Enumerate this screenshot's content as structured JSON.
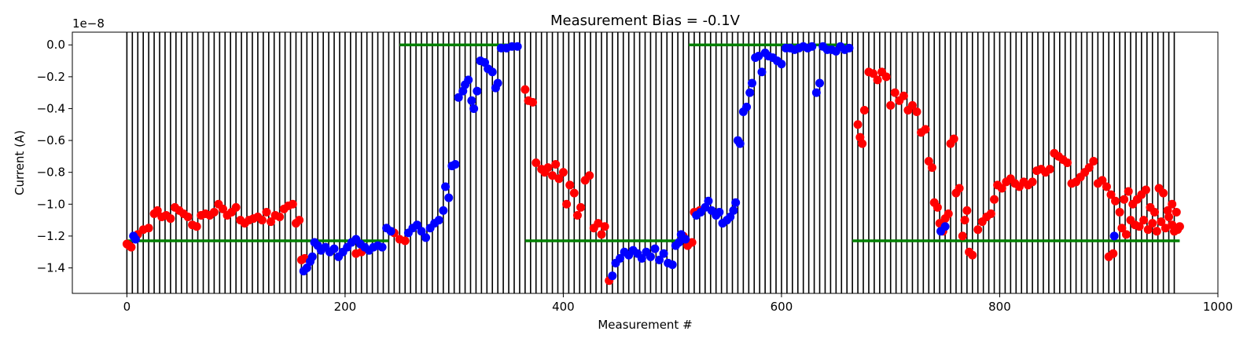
{
  "chart_data": {
    "type": "scatter",
    "title": "Measurement Bias = -0.1V",
    "xlabel": "Measurement #",
    "ylabel": "Current (A)",
    "y_offset_text": "1e−8",
    "y_multiplier": 1e-08,
    "xlim": [
      -50,
      1000
    ],
    "ylim": [
      -1.56,
      0.08
    ],
    "x_ticks": [
      0,
      200,
      400,
      600,
      800,
      1000
    ],
    "x_tick_labels": [
      "0",
      "200",
      "400",
      "600",
      "800",
      "1000"
    ],
    "y_ticks": [
      0.0,
      -0.2,
      -0.4,
      -0.6,
      -0.8,
      -1.0,
      -1.2,
      -1.4
    ],
    "y_tick_labels": [
      "0.0",
      "−0.2",
      "−0.4",
      "−0.6",
      "−0.8",
      "−1.0",
      "−1.2",
      "−1.4"
    ],
    "grid": false,
    "colors": {
      "red_series": "#ff0000",
      "blue_series": "#0000ff",
      "green_lines": "#008000",
      "vertical_lines": "#000000"
    },
    "vertical_lines": {
      "start": 0,
      "end": 960,
      "step": 5
    },
    "green_segments": [
      {
        "x": [
          0,
          240
        ],
        "y": -1.23
      },
      {
        "x": [
          250,
          360
        ],
        "y": 0.0
      },
      {
        "x": [
          365,
          510
        ],
        "y": -1.23
      },
      {
        "x": [
          515,
          660
        ],
        "y": 0.0
      },
      {
        "x": [
          665,
          965
        ],
        "y": -1.23
      }
    ],
    "series": [
      {
        "color": "red",
        "points": [
          [
            0,
            -1.25
          ],
          [
            2,
            -1.26
          ],
          [
            4,
            -1.27
          ],
          [
            10,
            -1.19
          ],
          [
            15,
            -1.16
          ],
          [
            20,
            -1.15
          ],
          [
            25,
            -1.06
          ],
          [
            28,
            -1.04
          ],
          [
            32,
            -1.08
          ],
          [
            36,
            -1.07
          ],
          [
            40,
            -1.09
          ],
          [
            44,
            -1.02
          ],
          [
            48,
            -1.04
          ],
          [
            52,
            -1.06
          ],
          [
            56,
            -1.08
          ],
          [
            60,
            -1.13
          ],
          [
            64,
            -1.14
          ],
          [
            68,
            -1.07
          ],
          [
            72,
            -1.06
          ],
          [
            76,
            -1.07
          ],
          [
            80,
            -1.05
          ],
          [
            84,
            -1.0
          ],
          [
            88,
            -1.03
          ],
          [
            92,
            -1.07
          ],
          [
            96,
            -1.05
          ],
          [
            100,
            -1.02
          ],
          [
            104,
            -1.1
          ],
          [
            108,
            -1.12
          ],
          [
            112,
            -1.1
          ],
          [
            116,
            -1.09
          ],
          [
            120,
            -1.08
          ],
          [
            124,
            -1.1
          ],
          [
            128,
            -1.05
          ],
          [
            132,
            -1.11
          ],
          [
            136,
            -1.07
          ],
          [
            140,
            -1.08
          ],
          [
            144,
            -1.03
          ],
          [
            148,
            -1.01
          ],
          [
            152,
            -1.0
          ],
          [
            155,
            -1.12
          ],
          [
            158,
            -1.1
          ],
          [
            160,
            -1.35
          ],
          [
            163,
            -1.34
          ],
          [
            210,
            -1.31
          ],
          [
            215,
            -1.3
          ],
          [
            245,
            -1.18
          ],
          [
            250,
            -1.22
          ],
          [
            255,
            -1.23
          ],
          [
            365,
            -0.28
          ],
          [
            368,
            -0.35
          ],
          [
            372,
            -0.36
          ],
          [
            375,
            -0.74
          ],
          [
            380,
            -0.78
          ],
          [
            383,
            -0.8
          ],
          [
            386,
            -0.77
          ],
          [
            390,
            -0.82
          ],
          [
            393,
            -0.75
          ],
          [
            396,
            -0.84
          ],
          [
            400,
            -0.8
          ],
          [
            403,
            -1.0
          ],
          [
            406,
            -0.88
          ],
          [
            410,
            -0.93
          ],
          [
            413,
            -1.07
          ],
          [
            416,
            -1.02
          ],
          [
            420,
            -0.85
          ],
          [
            424,
            -0.82
          ],
          [
            428,
            -1.15
          ],
          [
            432,
            -1.12
          ],
          [
            435,
            -1.19
          ],
          [
            438,
            -1.14
          ],
          [
            442,
            -1.48
          ],
          [
            510,
            -1.2
          ],
          [
            514,
            -1.26
          ],
          [
            518,
            -1.24
          ],
          [
            520,
            -1.05
          ],
          [
            525,
            -1.04
          ],
          [
            670,
            -0.5
          ],
          [
            672,
            -0.58
          ],
          [
            674,
            -0.62
          ],
          [
            676,
            -0.41
          ],
          [
            680,
            -0.17
          ],
          [
            684,
            -0.18
          ],
          [
            688,
            -0.22
          ],
          [
            692,
            -0.17
          ],
          [
            696,
            -0.2
          ],
          [
            700,
            -0.38
          ],
          [
            704,
            -0.3
          ],
          [
            708,
            -0.35
          ],
          [
            712,
            -0.32
          ],
          [
            716,
            -0.41
          ],
          [
            720,
            -0.38
          ],
          [
            724,
            -0.42
          ],
          [
            728,
            -0.55
          ],
          [
            732,
            -0.53
          ],
          [
            735,
            -0.73
          ],
          [
            738,
            -0.77
          ],
          [
            740,
            -0.99
          ],
          [
            743,
            -1.02
          ],
          [
            745,
            -1.12
          ],
          [
            748,
            -1.17
          ],
          [
            750,
            -1.09
          ],
          [
            753,
            -1.06
          ],
          [
            755,
            -0.62
          ],
          [
            758,
            -0.59
          ],
          [
            760,
            -0.93
          ],
          [
            763,
            -0.9
          ],
          [
            766,
            -1.2
          ],
          [
            768,
            -1.1
          ],
          [
            770,
            -1.04
          ],
          [
            772,
            -1.3
          ],
          [
            775,
            -1.32
          ],
          [
            780,
            -1.16
          ],
          [
            784,
            -1.11
          ],
          [
            788,
            -1.08
          ],
          [
            792,
            -1.06
          ],
          [
            795,
            -0.97
          ],
          [
            798,
            -0.88
          ],
          [
            802,
            -0.9
          ],
          [
            806,
            -0.86
          ],
          [
            810,
            -0.84
          ],
          [
            814,
            -0.87
          ],
          [
            818,
            -0.89
          ],
          [
            822,
            -0.86
          ],
          [
            826,
            -0.88
          ],
          [
            830,
            -0.86
          ],
          [
            834,
            -0.79
          ],
          [
            838,
            -0.78
          ],
          [
            842,
            -0.8
          ],
          [
            846,
            -0.78
          ],
          [
            850,
            -0.68
          ],
          [
            854,
            -0.7
          ],
          [
            858,
            -0.72
          ],
          [
            862,
            -0.74
          ],
          [
            866,
            -0.87
          ],
          [
            870,
            -0.86
          ],
          [
            874,
            -0.83
          ],
          [
            878,
            -0.8
          ],
          [
            882,
            -0.77
          ],
          [
            886,
            -0.73
          ],
          [
            890,
            -0.87
          ],
          [
            894,
            -0.85
          ],
          [
            898,
            -0.89
          ],
          [
            902,
            -0.94
          ],
          [
            906,
            -0.98
          ],
          [
            910,
            -1.05
          ],
          [
            914,
            -0.97
          ],
          [
            918,
            -0.92
          ],
          [
            922,
            -1.0
          ],
          [
            926,
            -0.97
          ],
          [
            930,
            -0.94
          ],
          [
            934,
            -0.91
          ],
          [
            938,
            -1.02
          ],
          [
            942,
            -1.05
          ],
          [
            946,
            -0.9
          ],
          [
            950,
            -0.93
          ],
          [
            954,
            -1.04
          ],
          [
            958,
            -1.0
          ],
          [
            962,
            -1.05
          ],
          [
            900,
            -1.33
          ],
          [
            904,
            -1.31
          ],
          [
            912,
            -1.15
          ],
          [
            916,
            -1.19
          ],
          [
            920,
            -1.1
          ],
          [
            924,
            -1.13
          ],
          [
            928,
            -1.14
          ],
          [
            932,
            -1.1
          ],
          [
            936,
            -1.16
          ],
          [
            940,
            -1.12
          ],
          [
            944,
            -1.17
          ],
          [
            948,
            -1.11
          ],
          [
            952,
            -1.15
          ],
          [
            955,
            -1.08
          ],
          [
            958,
            -1.13
          ],
          [
            960,
            -1.17
          ],
          [
            963,
            -1.16
          ],
          [
            965,
            -1.14
          ]
        ]
      },
      {
        "color": "blue",
        "points": [
          [
            6,
            -1.2
          ],
          [
            8,
            -1.22
          ],
          [
            162,
            -1.42
          ],
          [
            165,
            -1.4
          ],
          [
            168,
            -1.36
          ],
          [
            170,
            -1.33
          ],
          [
            172,
            -1.24
          ],
          [
            175,
            -1.26
          ],
          [
            178,
            -1.29
          ],
          [
            182,
            -1.27
          ],
          [
            186,
            -1.3
          ],
          [
            190,
            -1.28
          ],
          [
            194,
            -1.33
          ],
          [
            198,
            -1.3
          ],
          [
            202,
            -1.27
          ],
          [
            206,
            -1.24
          ],
          [
            210,
            -1.22
          ],
          [
            214,
            -1.25
          ],
          [
            218,
            -1.27
          ],
          [
            222,
            -1.29
          ],
          [
            226,
            -1.27
          ],
          [
            230,
            -1.26
          ],
          [
            234,
            -1.27
          ],
          [
            238,
            -1.15
          ],
          [
            242,
            -1.17
          ],
          [
            258,
            -1.18
          ],
          [
            262,
            -1.15
          ],
          [
            266,
            -1.13
          ],
          [
            270,
            -1.17
          ],
          [
            274,
            -1.21
          ],
          [
            278,
            -1.15
          ],
          [
            282,
            -1.12
          ],
          [
            286,
            -1.1
          ],
          [
            290,
            -1.04
          ],
          [
            292,
            -0.89
          ],
          [
            295,
            -0.96
          ],
          [
            298,
            -0.76
          ],
          [
            301,
            -0.75
          ],
          [
            304,
            -0.33
          ],
          [
            308,
            -0.29
          ],
          [
            310,
            -0.25
          ],
          [
            313,
            -0.22
          ],
          [
            316,
            -0.35
          ],
          [
            318,
            -0.4
          ],
          [
            321,
            -0.29
          ],
          [
            324,
            -0.1
          ],
          [
            328,
            -0.11
          ],
          [
            331,
            -0.15
          ],
          [
            335,
            -0.17
          ],
          [
            338,
            -0.27
          ],
          [
            340,
            -0.24
          ],
          [
            343,
            -0.02
          ],
          [
            348,
            -0.02
          ],
          [
            353,
            -0.01
          ],
          [
            358,
            -0.01
          ],
          [
            445,
            -1.45
          ],
          [
            448,
            -1.37
          ],
          [
            452,
            -1.34
          ],
          [
            456,
            -1.3
          ],
          [
            460,
            -1.32
          ],
          [
            464,
            -1.29
          ],
          [
            468,
            -1.31
          ],
          [
            472,
            -1.34
          ],
          [
            476,
            -1.3
          ],
          [
            480,
            -1.33
          ],
          [
            484,
            -1.28
          ],
          [
            488,
            -1.35
          ],
          [
            492,
            -1.31
          ],
          [
            496,
            -1.37
          ],
          [
            500,
            -1.38
          ],
          [
            503,
            -1.26
          ],
          [
            506,
            -1.24
          ],
          [
            508,
            -1.19
          ],
          [
            512,
            -1.22
          ],
          [
            522,
            -1.07
          ],
          [
            526,
            -1.05
          ],
          [
            530,
            -1.02
          ],
          [
            533,
            -0.98
          ],
          [
            536,
            -1.04
          ],
          [
            540,
            -1.07
          ],
          [
            543,
            -1.05
          ],
          [
            546,
            -1.12
          ],
          [
            550,
            -1.1
          ],
          [
            553,
            -1.08
          ],
          [
            556,
            -1.04
          ],
          [
            558,
            -0.99
          ],
          [
            560,
            -0.6
          ],
          [
            562,
            -0.62
          ],
          [
            565,
            -0.42
          ],
          [
            568,
            -0.39
          ],
          [
            571,
            -0.3
          ],
          [
            573,
            -0.24
          ],
          [
            576,
            -0.08
          ],
          [
            579,
            -0.07
          ],
          [
            582,
            -0.17
          ],
          [
            585,
            -0.05
          ],
          [
            588,
            -0.07
          ],
          [
            592,
            -0.08
          ],
          [
            596,
            -0.1
          ],
          [
            600,
            -0.12
          ],
          [
            604,
            -0.02
          ],
          [
            608,
            -0.02
          ],
          [
            612,
            -0.03
          ],
          [
            616,
            -0.02
          ],
          [
            620,
            -0.01
          ],
          [
            624,
            -0.02
          ],
          [
            628,
            -0.01
          ],
          [
            632,
            -0.3
          ],
          [
            635,
            -0.24
          ],
          [
            638,
            -0.01
          ],
          [
            642,
            -0.03
          ],
          [
            646,
            -0.03
          ],
          [
            650,
            -0.04
          ],
          [
            654,
            -0.01
          ],
          [
            658,
            -0.03
          ],
          [
            662,
            -0.02
          ],
          [
            746,
            -1.17
          ],
          [
            750,
            -1.14
          ],
          [
            905,
            -1.2
          ]
        ]
      }
    ]
  }
}
